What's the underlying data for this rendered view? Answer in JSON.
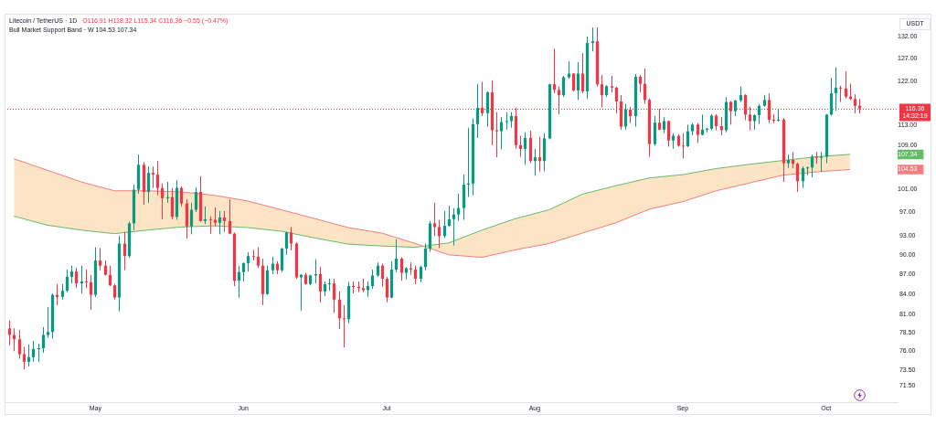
{
  "chart_data": {
    "type": "candlestick",
    "title": "Litecoin / TetherUS · 1D",
    "subtitle": "O116.91 H118.32 L115.34 C116.36 −0.55 (−0.47%)",
    "ylabel": "USDT",
    "legend_title": "Bull Market Support Band · W 104.53 107.34",
    "annotations": [
      "14:32:19"
    ],
    "xlim": [
      "--04-12",
      "--10-16"
    ],
    "xticks": [
      {
        "value": "--05-01",
        "label": "May"
      },
      {
        "value": "--06-01",
        "label": "Jun"
      },
      {
        "value": "--07-01",
        "label": "Jul"
      },
      {
        "value": "--08-01",
        "label": "Aug"
      },
      {
        "value": "--09-01",
        "label": "Sep"
      },
      {
        "value": "--10-01",
        "label": "Oct"
      }
    ],
    "ylim": [
      69.5,
      137.4
    ],
    "log": true,
    "yticks": [
      {
        "value": 132,
        "label": "132.00"
      },
      {
        "value": 127,
        "label": "127.00"
      },
      {
        "value": 122,
        "label": "122.00"
      },
      {
        "value": 113,
        "label": "113.00"
      },
      {
        "value": 109,
        "label": "109.00"
      },
      107.34,
      104.53,
      {
        "value": 101,
        "label": "101.00"
      },
      {
        "value": 97,
        "label": "97.00"
      },
      {
        "value": 93,
        "label": "93.00"
      },
      {
        "value": 90,
        "label": "90.00"
      },
      {
        "value": 87,
        "label": "87.00"
      },
      {
        "value": 84,
        "label": "84.00"
      },
      {
        "value": 81,
        "label": "81.00"
      },
      {
        "value": 78.5,
        "label": "78.50"
      },
      {
        "value": 76,
        "label": "76.00"
      },
      {
        "value": 73.5,
        "label": "73.50"
      },
      {
        "value": 71.5,
        "label": "71.50"
      }
    ],
    "ref_lines": [
      {
        "axis": "y",
        "value": 116.36,
        "label": "116.36",
        "color": "#f23645",
        "line_style": "dotted"
      }
    ],
    "series": [
      {
        "type": "line",
        "color": "#f77c80",
        "x": [
          "--04-14",
          "--04-21",
          "--04-28",
          "--05-05",
          "--05-12",
          "--05-19",
          "--05-26",
          "--06-02",
          "--06-09",
          "--06-16",
          "--06-23",
          "--06-30",
          "--07-07",
          "--07-14",
          "--07-21",
          "--07-28",
          "--08-04",
          "--08-11",
          "--08-18",
          "--08-25",
          "--09-01",
          "--09-08",
          "--09-15",
          "--09-22",
          "--09-29",
          "--10-06"
        ],
        "values": [
          106.5,
          104.4,
          102.3,
          100.7,
          100.7,
          100.5,
          99.9,
          98.9,
          97.4,
          95.9,
          94.4,
          93.5,
          91.8,
          90.0,
          89.6,
          90.8,
          91.8,
          93.5,
          95.2,
          97.5,
          98.8,
          100.7,
          102.1,
          103.5,
          104.1,
          104.53
        ]
      },
      {
        "type": "line",
        "color": "#66bb6a",
        "x": [
          "--04-14",
          "--04-21",
          "--04-28",
          "--05-05",
          "--05-12",
          "--05-19",
          "--05-26",
          "--06-02",
          "--06-09",
          "--06-16",
          "--06-23",
          "--06-30",
          "--07-07",
          "--07-14",
          "--07-21",
          "--07-28",
          "--08-04",
          "--08-11",
          "--08-18",
          "--08-25",
          "--09-01",
          "--09-08",
          "--09-15",
          "--09-22",
          "--09-29",
          "--10-06"
        ],
        "values": [
          96.3,
          94.8,
          94.0,
          93.4,
          94.0,
          94.5,
          94.7,
          94.4,
          93.8,
          92.7,
          91.7,
          91.4,
          91.2,
          91.9,
          94.0,
          95.9,
          97.4,
          100.1,
          101.6,
          103.0,
          103.6,
          104.7,
          105.5,
          106.2,
          106.9,
          107.34
        ],
        "lower": [
          106.5,
          104.4,
          102.3,
          100.7,
          100.7,
          100.5,
          99.9,
          98.9,
          97.4,
          95.9,
          94.4,
          93.5,
          91.8,
          90.0,
          89.6,
          90.8,
          91.8,
          93.5,
          95.2,
          97.5,
          98.8,
          100.7,
          102.1,
          103.5,
          104.1,
          104.53
        ],
        "upper": [
          96.3,
          94.8,
          94.0,
          93.4,
          94.0,
          94.5,
          94.7,
          94.4,
          93.8,
          92.7,
          91.7,
          91.4,
          91.2,
          91.9,
          94.0,
          95.9,
          97.4,
          100.1,
          101.6,
          103.0,
          103.6,
          104.7,
          105.5,
          106.2,
          106.9,
          107.34
        ]
      },
      {
        "x": [
          "--04-13",
          "--04-14",
          "--04-15",
          "--04-16",
          "--04-17",
          "--04-18",
          "--04-19",
          "--04-20",
          "--04-21",
          "--04-22",
          "--04-23",
          "--04-24",
          "--04-25",
          "--04-26",
          "--04-27",
          "--04-28",
          "--04-29",
          "--04-30",
          "--05-01",
          "--05-02",
          "--05-03",
          "--05-04",
          "--05-05",
          "--05-06",
          "--05-07",
          "--05-08",
          "--05-09",
          "--05-10",
          "--05-11",
          "--05-12",
          "--05-13",
          "--05-14",
          "--05-15",
          "--05-16",
          "--05-17",
          "--05-18",
          "--05-19",
          "--05-20",
          "--05-21",
          "--05-22",
          "--05-23",
          "--05-24",
          "--05-25",
          "--05-26",
          "--05-27",
          "--05-28",
          "--05-29",
          "--05-30",
          "--05-31",
          "--06-01",
          "--06-02",
          "--06-03",
          "--06-04",
          "--06-05",
          "--06-06",
          "--06-07",
          "--06-08",
          "--06-09",
          "--06-10",
          "--06-11",
          "--06-12",
          "--06-13",
          "--06-14",
          "--06-15",
          "--06-16",
          "--06-17",
          "--06-18",
          "--06-19",
          "--06-20",
          "--06-21",
          "--06-22",
          "--06-23",
          "--06-24",
          "--06-25",
          "--06-26",
          "--06-27",
          "--06-28",
          "--06-29",
          "--06-30",
          "--07-01",
          "--07-02",
          "--07-03",
          "--07-04",
          "--07-05",
          "--07-06",
          "--07-07",
          "--07-08",
          "--07-09",
          "--07-10",
          "--07-11",
          "--07-12",
          "--07-13",
          "--07-14",
          "--07-15",
          "--07-16",
          "--07-17",
          "--07-18",
          "--07-19",
          "--07-20",
          "--07-21",
          "--07-22",
          "--07-23",
          "--07-24",
          "--07-25",
          "--07-26",
          "--07-27",
          "--07-28",
          "--07-29",
          "--07-30",
          "--07-31",
          "--08-01",
          "--08-02",
          "--08-03",
          "--08-04",
          "--08-05",
          "--08-06",
          "--08-07",
          "--08-08",
          "--08-09",
          "--08-10",
          "--08-11",
          "--08-12",
          "--08-13",
          "--08-14",
          "--08-15",
          "--08-16",
          "--08-17",
          "--08-18",
          "--08-19",
          "--08-20",
          "--08-21",
          "--08-22",
          "--08-23",
          "--08-24",
          "--08-25",
          "--08-26",
          "--08-27",
          "--08-28",
          "--08-29",
          "--08-30",
          "--08-31",
          "--09-01",
          "--09-02",
          "--09-03",
          "--09-04",
          "--09-05",
          "--09-06",
          "--09-07",
          "--09-08",
          "--09-09",
          "--09-10",
          "--09-11",
          "--09-12",
          "--09-13",
          "--09-14",
          "--09-15",
          "--09-16",
          "--09-17",
          "--09-18",
          "--09-19",
          "--09-20",
          "--09-21",
          "--09-22",
          "--09-23",
          "--09-24",
          "--09-25",
          "--09-26",
          "--09-27",
          "--09-28",
          "--09-29",
          "--09-30",
          "--10-01",
          "--10-02",
          "--10-03",
          "--10-04",
          "--10-05",
          "--10-06",
          "--10-07",
          "--10-08"
        ],
        "ohlc": [
          [
            79.1,
            80.2,
            76.8,
            78.2
          ],
          [
            78.2,
            79.1,
            76.0,
            77.6
          ],
          [
            77.6,
            78.9,
            75.0,
            75.6
          ],
          [
            75.6,
            76.6,
            73.6,
            74.6
          ],
          [
            74.6,
            76.9,
            74.0,
            75.2
          ],
          [
            75.2,
            77.4,
            74.6,
            76.3
          ],
          [
            76.3,
            77.0,
            74.6,
            76.4
          ],
          [
            76.4,
            79.3,
            75.8,
            78.2
          ],
          [
            78.2,
            82.1,
            77.8,
            78.6
          ],
          [
            78.6,
            84.1,
            77.7,
            83.9
          ],
          [
            83.9,
            85.5,
            82.4,
            83.6
          ],
          [
            83.6,
            85.5,
            83.2,
            84.5
          ],
          [
            84.5,
            87.7,
            84.3,
            86.6
          ],
          [
            86.6,
            88.3,
            85.6,
            87.4
          ],
          [
            87.4,
            88.0,
            84.9,
            85.6
          ],
          [
            85.6,
            88.3,
            84.1,
            85.9
          ],
          [
            85.9,
            87.7,
            84.9,
            85.8
          ],
          [
            85.8,
            86.9,
            81.7,
            83.9
          ],
          [
            83.9,
            91.2,
            83.6,
            89.1
          ],
          [
            89.1,
            91.1,
            87.6,
            88.3
          ],
          [
            88.3,
            89.1,
            86.8,
            86.9
          ],
          [
            86.9,
            88.3,
            85.2,
            85.3
          ],
          [
            85.3,
            85.5,
            83.2,
            83.5
          ],
          [
            83.5,
            93.0,
            81.5,
            91.8
          ],
          [
            91.8,
            93.7,
            87.6,
            89.8
          ],
          [
            89.8,
            95.4,
            89.5,
            95.1
          ],
          [
            95.1,
            101.8,
            94.0,
            100.9
          ],
          [
            100.9,
            107.3,
            100.2,
            105.4
          ],
          [
            105.4,
            105.9,
            98.3,
            100.5
          ],
          [
            100.5,
            105.1,
            98.6,
            103.9
          ],
          [
            103.9,
            105.1,
            101.2,
            103.6
          ],
          [
            103.6,
            106.1,
            99.9,
            101.2
          ],
          [
            101.2,
            102.0,
            95.8,
            99.4
          ],
          [
            99.4,
            102.3,
            98.6,
            99.6
          ],
          [
            99.6,
            101.2,
            95.8,
            96.2
          ],
          [
            96.2,
            102.6,
            95.7,
            101.2
          ],
          [
            101.2,
            101.5,
            98.0,
            98.5
          ],
          [
            98.5,
            99.2,
            92.6,
            94.6
          ],
          [
            94.6,
            98.6,
            93.3,
            97.4
          ],
          [
            97.4,
            101.3,
            97.0,
            100.5
          ],
          [
            100.5,
            103.3,
            95.4,
            95.5
          ],
          [
            95.5,
            98.0,
            95.0,
            95.8
          ],
          [
            95.8,
            96.3,
            93.4,
            95.7
          ],
          [
            95.7,
            97.8,
            94.5,
            95.2
          ],
          [
            95.2,
            97.2,
            93.3,
            96.1
          ],
          [
            96.1,
            97.2,
            93.7,
            95.5
          ],
          [
            95.5,
            99.2,
            93.3,
            93.4
          ],
          [
            93.4,
            93.6,
            85.2,
            86.0
          ],
          [
            86.0,
            88.3,
            83.5,
            87.3
          ],
          [
            87.3,
            88.8,
            85.9,
            88.7
          ],
          [
            88.7,
            90.4,
            87.4,
            89.8
          ],
          [
            89.8,
            90.8,
            89.1,
            89.7
          ],
          [
            89.7,
            91.2,
            88.0,
            88.3
          ],
          [
            88.3,
            89.4,
            82.4,
            84.0
          ],
          [
            84.0,
            88.3,
            83.9,
            87.6
          ],
          [
            87.6,
            89.7,
            87.0,
            88.6
          ],
          [
            88.6,
            89.0,
            87.0,
            87.6
          ],
          [
            87.6,
            91.1,
            87.3,
            91.0
          ],
          [
            91.0,
            93.7,
            90.0,
            93.6
          ],
          [
            93.6,
            94.5,
            90.7,
            91.8
          ],
          [
            91.8,
            92.0,
            86.3,
            86.5
          ],
          [
            86.5,
            87.0,
            81.6,
            86.9
          ],
          [
            86.9,
            87.2,
            85.4,
            85.5
          ],
          [
            85.5,
            86.9,
            85.3,
            86.8
          ],
          [
            86.8,
            89.3,
            85.6,
            87.0
          ],
          [
            87.0,
            88.1,
            82.8,
            84.4
          ],
          [
            84.4,
            85.9,
            83.7,
            85.5
          ],
          [
            85.5,
            86.3,
            84.5,
            85.6
          ],
          [
            85.6,
            86.3,
            81.3,
            83.2
          ],
          [
            83.2,
            84.4,
            79.0,
            80.5
          ],
          [
            80.5,
            82.4,
            76.5,
            80.4
          ],
          [
            80.4,
            85.8,
            79.8,
            85.2
          ],
          [
            85.2,
            85.9,
            84.1,
            85.1
          ],
          [
            85.1,
            85.9,
            84.3,
            84.9
          ],
          [
            84.9,
            86.3,
            84.3,
            84.6
          ],
          [
            84.6,
            85.9,
            83.6,
            85.2
          ],
          [
            85.2,
            87.7,
            84.8,
            86.8
          ],
          [
            86.8,
            88.8,
            86.6,
            88.3
          ],
          [
            88.3,
            88.6,
            85.1,
            86.3
          ],
          [
            86.3,
            86.6,
            82.8,
            83.5
          ],
          [
            83.5,
            89.0,
            83.4,
            87.7
          ],
          [
            87.7,
            92.5,
            87.3,
            89.4
          ],
          [
            89.4,
            89.6,
            86.0,
            87.2
          ],
          [
            87.2,
            88.1,
            86.2,
            87.9
          ],
          [
            87.9,
            88.8,
            86.9,
            87.7
          ],
          [
            87.7,
            88.3,
            85.5,
            86.3
          ],
          [
            86.3,
            88.3,
            85.8,
            88.1
          ],
          [
            88.1,
            91.8,
            87.6,
            91.0
          ],
          [
            91.0,
            95.5,
            90.5,
            95.1
          ],
          [
            95.1,
            98.6,
            93.0,
            94.5
          ],
          [
            94.5,
            95.7,
            91.1,
            93.0
          ],
          [
            93.0,
            97.2,
            92.7,
            94.7
          ],
          [
            94.7,
            98.1,
            94.5,
            95.8
          ],
          [
            95.8,
            97.7,
            91.5,
            96.6
          ],
          [
            96.6,
            100.2,
            95.5,
            97.7
          ],
          [
            97.7,
            103.6,
            95.7,
            101.8
          ],
          [
            101.8,
            112.5,
            99.6,
            102.0
          ],
          [
            102.0,
            114.3,
            99.9,
            113.2
          ],
          [
            113.2,
            121.5,
            110.5,
            116.5
          ],
          [
            116.5,
            121.9,
            114.8,
            115.4
          ],
          [
            115.4,
            119.9,
            112.7,
            119.7
          ],
          [
            119.7,
            122.2,
            109.1,
            112.0
          ],
          [
            112.0,
            115.6,
            106.8,
            111.8
          ],
          [
            111.8,
            114.6,
            108.3,
            113.6
          ],
          [
            113.6,
            115.6,
            112.1,
            113.8
          ],
          [
            113.8,
            115.6,
            112.5,
            114.8
          ],
          [
            114.8,
            116.5,
            108.4,
            109.1
          ],
          [
            109.1,
            110.9,
            106.9,
            108.4
          ],
          [
            108.4,
            111.6,
            105.4,
            110.5
          ],
          [
            110.5,
            111.9,
            105.7,
            106.1
          ],
          [
            106.1,
            108.4,
            103.4,
            106.8
          ],
          [
            106.8,
            110.7,
            104.2,
            106.1
          ],
          [
            106.1,
            111.4,
            104.2,
            110.4
          ],
          [
            110.4,
            121.5,
            110.2,
            121.4
          ],
          [
            121.4,
            129.2,
            119.5,
            120.2
          ],
          [
            120.2,
            121.0,
            115.2,
            119.1
          ],
          [
            119.1,
            123.2,
            118.7,
            122.9
          ],
          [
            122.9,
            126.4,
            122.6,
            123.7
          ],
          [
            123.7,
            123.8,
            119.9,
            120.1
          ],
          [
            120.1,
            126.2,
            118.1,
            123.7
          ],
          [
            123.7,
            128.2,
            119.5,
            119.9
          ],
          [
            119.9,
            132.0,
            118.3,
            130.5
          ],
          [
            130.5,
            134.1,
            128.6,
            130.9
          ],
          [
            130.9,
            134.1,
            120.9,
            121.4
          ],
          [
            121.4,
            123.4,
            116.6,
            119.1
          ],
          [
            119.1,
            121.2,
            118.7,
            121.0
          ],
          [
            121.0,
            123.2,
            119.7,
            120.7
          ],
          [
            120.7,
            120.9,
            115.4,
            117.8
          ],
          [
            117.8,
            119.1,
            112.1,
            112.7
          ],
          [
            112.7,
            117.3,
            112.1,
            116.1
          ],
          [
            116.1,
            116.7,
            113.4,
            114.8
          ],
          [
            114.8,
            123.6,
            112.7,
            123.0
          ],
          [
            123.0,
            123.4,
            119.7,
            121.5
          ],
          [
            121.5,
            124.8,
            117.3,
            118.1
          ],
          [
            118.1,
            118.4,
            106.9,
            109.3
          ],
          [
            109.3,
            114.8,
            109.0,
            113.5
          ],
          [
            113.5,
            116.3,
            112.0,
            112.1
          ],
          [
            112.1,
            114.6,
            111.4,
            113.8
          ],
          [
            113.8,
            113.9,
            108.8,
            110.0
          ],
          [
            110.0,
            111.4,
            108.4,
            110.9
          ],
          [
            110.9,
            111.2,
            108.8,
            109.0
          ],
          [
            109.0,
            111.4,
            106.6,
            108.9
          ],
          [
            108.9,
            113.1,
            108.7,
            111.8
          ],
          [
            111.8,
            113.4,
            111.0,
            113.1
          ],
          [
            113.1,
            113.4,
            109.5,
            111.1
          ],
          [
            111.1,
            115.1,
            111.0,
            112.1
          ],
          [
            112.1,
            112.5,
            111.6,
            112.3
          ],
          [
            112.3,
            115.2,
            112.0,
            114.9
          ],
          [
            114.9,
            115.2,
            112.0,
            112.8
          ],
          [
            112.8,
            114.6,
            111.0,
            112.0
          ],
          [
            112.0,
            118.7,
            111.6,
            117.7
          ],
          [
            117.7,
            117.9,
            113.1,
            115.8
          ],
          [
            115.8,
            118.1,
            114.8,
            118.0
          ],
          [
            118.0,
            120.9,
            117.7,
            119.1
          ],
          [
            119.1,
            119.3,
            114.0,
            115.1
          ],
          [
            115.1,
            116.7,
            112.0,
            113.8
          ],
          [
            113.8,
            115.2,
            112.1,
            115.0
          ],
          [
            115.0,
            117.3,
            113.2,
            116.9
          ],
          [
            116.9,
            119.1,
            116.7,
            118.1
          ],
          [
            118.1,
            119.5,
            113.4,
            114.1
          ],
          [
            114.1,
            115.2,
            113.4,
            113.9
          ],
          [
            113.9,
            116.3,
            113.7,
            114.1
          ],
          [
            114.1,
            114.4,
            102.3,
            105.7
          ],
          [
            105.7,
            107.3,
            104.8,
            106.3
          ],
          [
            106.3,
            107.8,
            104.8,
            105.6
          ],
          [
            105.6,
            105.8,
            100.5,
            102.4
          ],
          [
            102.4,
            105.1,
            101.2,
            104.8
          ],
          [
            104.8,
            105.1,
            103.5,
            104.9
          ],
          [
            104.9,
            107.3,
            103.1,
            106.9
          ],
          [
            106.9,
            107.8,
            105.6,
            106.7
          ],
          [
            106.7,
            107.8,
            104.1,
            106.9
          ],
          [
            106.9,
            115.2,
            105.7,
            115.1
          ],
          [
            115.1,
            122.8,
            114.9,
            119.5
          ],
          [
            119.5,
            125.0,
            115.9,
            120.7
          ],
          [
            120.7,
            121.1,
            117.7,
            120.5
          ],
          [
            120.5,
            124.2,
            118.4,
            118.8
          ],
          [
            118.8,
            121.5,
            118.1,
            118.3
          ],
          [
            118.3,
            119.3,
            115.4,
            116.91
          ],
          [
            116.91,
            118.32,
            115.34,
            116.36
          ]
        ],
        "colors": [
          "#f23645",
          "#f23645",
          "#f23645",
          "#f23645",
          "#089981",
          "#089981",
          "#089981",
          "#089981",
          "#089981",
          "#089981",
          "#f23645",
          "#089981",
          "#089981",
          "#089981",
          "#f23645",
          "#089981",
          "#f23645",
          "#f23645",
          "#089981",
          "#f23645",
          "#f23645",
          "#f23645",
          "#f23645",
          "#089981",
          "#f23645",
          "#089981",
          "#089981",
          "#089981",
          "#f23645",
          "#089981",
          "#f23645",
          "#f23645",
          "#f23645",
          "#089981",
          "#f23645",
          "#089981",
          "#f23645",
          "#f23645",
          "#089981",
          "#089981",
          "#f23645",
          "#089981",
          "#f23645",
          "#f23645",
          "#089981",
          "#f23645",
          "#f23645",
          "#f23645",
          "#089981",
          "#089981",
          "#089981",
          "#f23645",
          "#f23645",
          "#f23645",
          "#089981",
          "#089981",
          "#f23645",
          "#089981",
          "#089981",
          "#f23645",
          "#f23645",
          "#089981",
          "#f23645",
          "#089981",
          "#089981",
          "#f23645",
          "#089981",
          "#089981",
          "#f23645",
          "#f23645",
          "#f23645",
          "#089981",
          "#f23645",
          "#f23645",
          "#f23645",
          "#089981",
          "#089981",
          "#089981",
          "#f23645",
          "#f23645",
          "#089981",
          "#089981",
          "#f23645",
          "#089981",
          "#f23645",
          "#f23645",
          "#089981",
          "#089981",
          "#089981",
          "#f23645",
          "#f23645",
          "#089981",
          "#089981",
          "#089981",
          "#089981",
          "#089981",
          "#089981",
          "#089981",
          "#089981",
          "#f23645",
          "#089981",
          "#f23645",
          "#f23645",
          "#089981",
          "#089981",
          "#089981",
          "#f23645",
          "#f23645",
          "#089981",
          "#f23645",
          "#089981",
          "#f23645",
          "#089981",
          "#089981",
          "#f23645",
          "#f23645",
          "#089981",
          "#089981",
          "#f23645",
          "#089981",
          "#f23645",
          "#089981",
          "#089981",
          "#f23645",
          "#f23645",
          "#089981",
          "#f23645",
          "#f23645",
          "#f23645",
          "#089981",
          "#f23645",
          "#089981",
          "#f23645",
          "#f23645",
          "#f23645",
          "#089981",
          "#f23645",
          "#089981",
          "#f23645",
          "#089981",
          "#f23645",
          "#f23645",
          "#089981",
          "#089981",
          "#f23645",
          "#089981",
          "#089981",
          "#089981",
          "#f23645",
          "#f23645",
          "#089981",
          "#f23645",
          "#089981",
          "#089981",
          "#f23645",
          "#f23645",
          "#089981",
          "#089981",
          "#089981",
          "#f23645",
          "#f23645",
          "#089981",
          "#f23645",
          "#089981",
          "#f23645",
          "#f23645",
          "#089981",
          "#089981",
          "#089981",
          "#f23645",
          "#089981",
          "#089981",
          "#089981",
          "#089981",
          "#f23645",
          "#f23645",
          "#f23645",
          "#f23645",
          "#f23645"
        ]
      }
    ]
  }
}
